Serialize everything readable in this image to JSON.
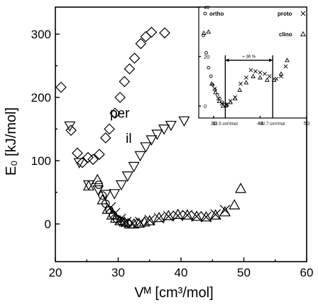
{
  "chart_data": [
    {
      "type": "scatter",
      "xlabel": "Vᴹ [cm³/mol]",
      "ylabel": "E₀ [kJ/mol]",
      "xlim": [
        20,
        60
      ],
      "ylim": [
        -20,
        350
      ],
      "xticks": [
        20,
        30,
        40,
        50,
        60
      ],
      "yticks": [
        0,
        100,
        200,
        300
      ],
      "annotations": [
        {
          "text": "per",
          "x": 28.7,
          "y": 168
        },
        {
          "text": "il",
          "x": 31.2,
          "y": 128
        }
      ],
      "series": [
        {
          "marker": "diamond",
          "values": [
            [
              20.9,
              216
            ],
            [
              22.5,
              148
            ],
            [
              23.5,
              112
            ],
            [
              24.3,
              97
            ],
            [
              25.2,
              105
            ],
            [
              26.0,
              102
            ],
            [
              27.0,
              110
            ],
            [
              28.0,
              136
            ],
            [
              28.6,
              150
            ],
            [
              29.5,
              175
            ],
            [
              30.3,
              200
            ],
            [
              31.0,
              225
            ],
            [
              31.8,
              245
            ],
            [
              32.6,
              262
            ],
            [
              33.6,
              285
            ],
            [
              34.4,
              296
            ],
            [
              35.3,
              303
            ],
            [
              37.4,
              302
            ]
          ]
        },
        {
          "marker": "triangle-down",
          "values": [
            [
              22.3,
              155
            ],
            [
              23.8,
              97
            ],
            [
              25.3,
              62
            ],
            [
              26.8,
              54
            ],
            [
              28.0,
              47
            ],
            [
              29.4,
              48
            ],
            [
              30.5,
              62
            ],
            [
              31.5,
              76
            ],
            [
              32.5,
              91
            ],
            [
              33.5,
              108
            ],
            [
              34.4,
              122
            ],
            [
              35.3,
              133
            ],
            [
              36.2,
              142
            ],
            [
              37.3,
              150
            ],
            [
              38.4,
              156
            ],
            [
              40.5,
              163
            ]
          ]
        },
        {
          "marker": "triangle-up",
          "values": [
            [
              25.3,
              60
            ],
            [
              26.7,
              70
            ],
            [
              27.5,
              38
            ],
            [
              28.3,
              23
            ],
            [
              29.0,
              14
            ],
            [
              29.6,
              9
            ],
            [
              30.3,
              5
            ],
            [
              31.0,
              3
            ],
            [
              31.8,
              0
            ],
            [
              32.5,
              0
            ],
            [
              33.3,
              1
            ],
            [
              34.2,
              3
            ],
            [
              35.0,
              5
            ],
            [
              36.5,
              10
            ],
            [
              38.0,
              13
            ],
            [
              39.5,
              15
            ],
            [
              41.0,
              14
            ],
            [
              42.5,
              12
            ],
            [
              44.0,
              11
            ],
            [
              45.5,
              14
            ],
            [
              47.0,
              19
            ],
            [
              48.5,
              30
            ],
            [
              49.5,
              56
            ]
          ]
        },
        {
          "marker": "circle",
          "values": [
            [
              26.9,
              62
            ],
            [
              27.5,
              45
            ],
            [
              28.0,
              32
            ],
            [
              28.6,
              22
            ],
            [
              29.2,
              14
            ],
            [
              29.8,
              8
            ],
            [
              30.4,
              5
            ],
            [
              31.0,
              2
            ],
            [
              31.6,
              1
            ]
          ]
        },
        {
          "marker": "cross",
          "values": [
            [
              28.8,
              26
            ],
            [
              29.5,
              17
            ],
            [
              30.4,
              8
            ],
            [
              31.3,
              3
            ],
            [
              32.3,
              1
            ],
            [
              33.5,
              3
            ],
            [
              35.0,
              6
            ],
            [
              36.5,
              9
            ],
            [
              38.0,
              12
            ],
            [
              39.5,
              13
            ],
            [
              41.0,
              14
            ],
            [
              42.5,
              12
            ],
            [
              44.0,
              11
            ],
            [
              45.5,
              15
            ],
            [
              47.0,
              22
            ]
          ]
        }
      ]
    },
    {
      "type": "scatter",
      "xlim": [
        20,
        50
      ],
      "ylim": [
        -5,
        40
      ],
      "xticks": [
        30,
        40,
        50
      ],
      "yticks": [
        0,
        20,
        40
      ],
      "legend": [
        {
          "label": "ortho",
          "marker": "circle"
        },
        {
          "label": "proto",
          "marker": "cross"
        },
        {
          "label": "clino",
          "marker": "triangle-up"
        }
      ],
      "annotations": [
        {
          "text": "+ 36 %"
        },
        {
          "text": "32.5 cm³/mol",
          "x": 32.5
        },
        {
          "text": "42.7 cm³/mol",
          "x": 42.7
        }
      ],
      "series": [
        {
          "name": "ortho",
          "marker": "circle",
          "values": [
            [
              27.8,
              28.5
            ],
            [
              28.4,
              21.5
            ],
            [
              28.9,
              15.5
            ],
            [
              29.4,
              12
            ],
            [
              29.8,
              8.5
            ],
            [
              30.3,
              6.5
            ],
            [
              30.8,
              4.5
            ],
            [
              31.3,
              3
            ],
            [
              31.8,
              1.5
            ],
            [
              32.3,
              0.5
            ],
            [
              32.8,
              0
            ]
          ]
        },
        {
          "name": "clino",
          "marker": "triangle-up",
          "values": [
            [
              27.9,
              29.5
            ],
            [
              28.9,
              30
            ],
            [
              29.6,
              9
            ],
            [
              30.4,
              5.5
            ],
            [
              31.2,
              2
            ],
            [
              32.0,
              0
            ],
            [
              32.8,
              0.5
            ],
            [
              33.6,
              1.5
            ],
            [
              34.6,
              3
            ],
            [
              35.6,
              6.5
            ],
            [
              37.0,
              9.5
            ],
            [
              38.5,
              12
            ],
            [
              40.0,
              11.5
            ],
            [
              41.5,
              10.5
            ],
            [
              43.0,
              10.5
            ],
            [
              44.5,
              13
            ],
            [
              45.8,
              18.5
            ]
          ]
        },
        {
          "name": "proto",
          "marker": "cross",
          "values": [
            [
              30.2,
              7
            ],
            [
              31.0,
              3
            ],
            [
              31.8,
              1
            ],
            [
              32.7,
              0.5
            ],
            [
              33.6,
              2
            ],
            [
              34.6,
              3.5
            ],
            [
              35.8,
              9
            ],
            [
              37.0,
              11.5
            ],
            [
              38.0,
              14.5
            ],
            [
              39.0,
              14
            ],
            [
              40.0,
              13.5
            ],
            [
              41.0,
              13
            ],
            [
              42.0,
              12
            ],
            [
              43.5,
              11
            ],
            [
              44.5,
              12
            ],
            [
              45.5,
              16
            ]
          ]
        }
      ]
    }
  ]
}
